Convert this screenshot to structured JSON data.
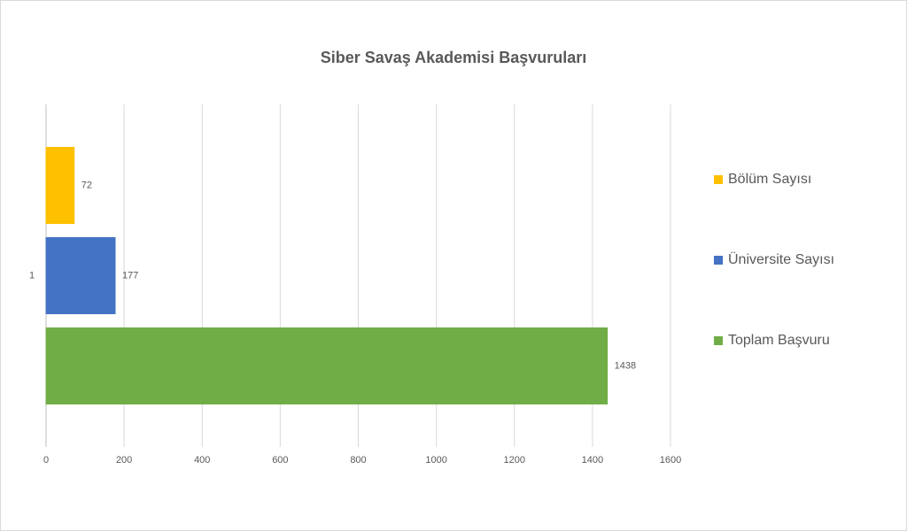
{
  "chart_data": {
    "type": "bar",
    "orientation": "horizontal",
    "title": "Siber Savaş Akademisi Başvuruları",
    "categories": [
      "1"
    ],
    "series": [
      {
        "name": "Toplam Başvuru",
        "color": "#70ad47",
        "values": [
          1438
        ]
      },
      {
        "name": "Üniversite Sayısı",
        "color": "#4472c4",
        "values": [
          177
        ]
      },
      {
        "name": "Bölüm Sayısı",
        "color": "#ffc000",
        "values": [
          72
        ]
      }
    ],
    "xlim": [
      0,
      1600
    ],
    "xticks": [
      0,
      200,
      400,
      600,
      800,
      1000,
      1200,
      1400,
      1600
    ],
    "grid": true,
    "legend": "right"
  }
}
